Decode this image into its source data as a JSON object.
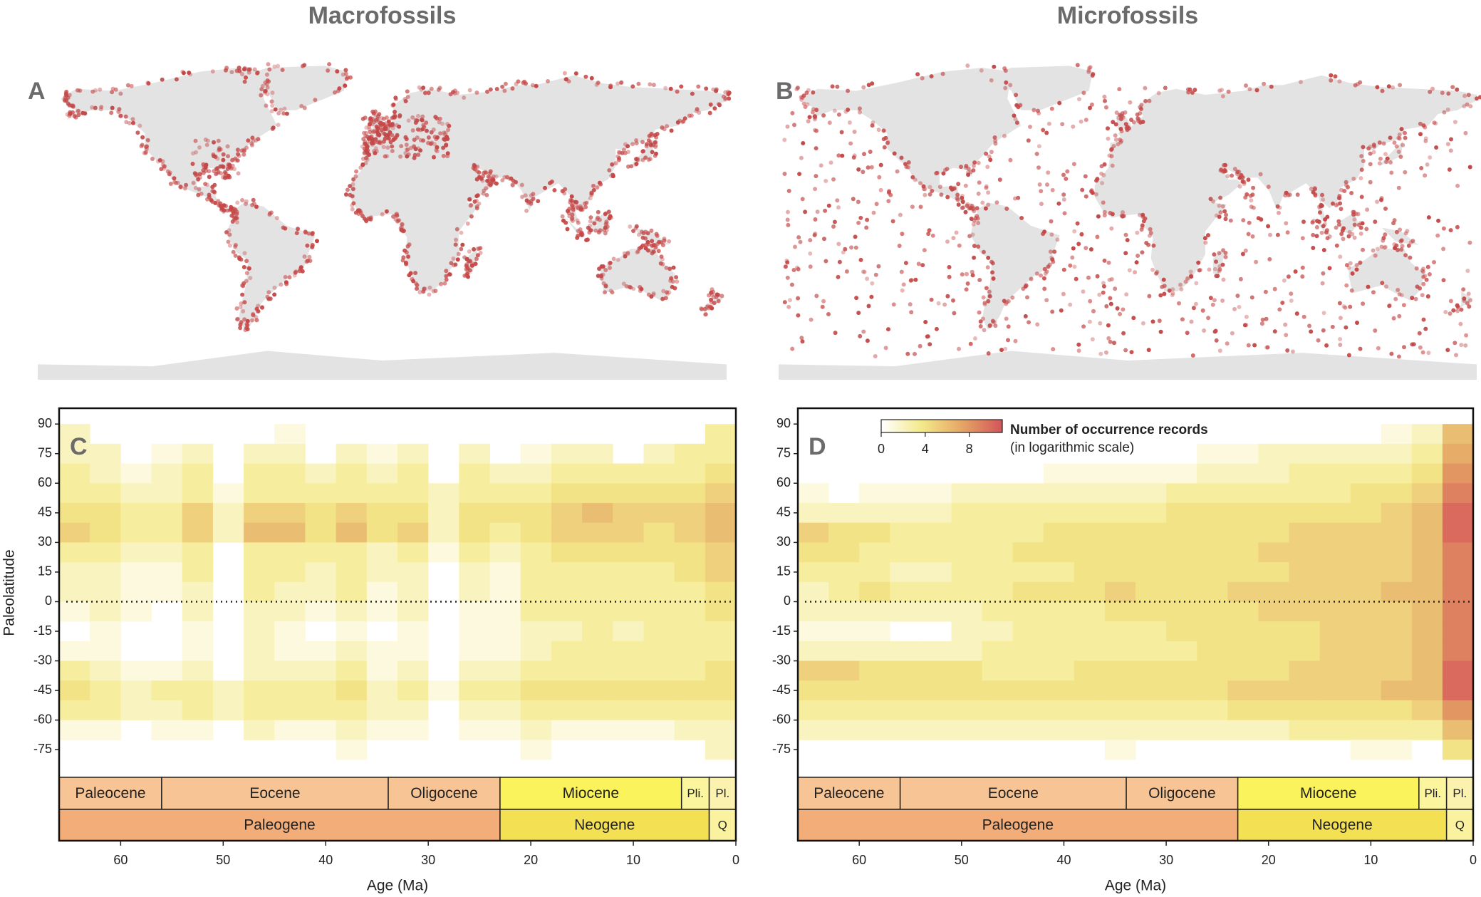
{
  "chart_data": [
    {
      "type": "map",
      "title": "Macrofossils",
      "panel": "A",
      "dot_color": "#c44848",
      "land_color": "#e3e3e3"
    },
    {
      "type": "map",
      "title": "Microfossils",
      "panel": "B",
      "dot_color": "#c44848",
      "land_color": "#e3e3e3"
    },
    {
      "type": "heatmap",
      "panel": "C",
      "xlabel": "Age (Ma)",
      "ylabel": "Paleolatitude",
      "xlim": [
        66,
        0
      ],
      "ylim": [
        -89,
        98
      ],
      "xticks": [
        60,
        50,
        40,
        30,
        20,
        10,
        0
      ],
      "yticks": [
        90,
        75,
        60,
        45,
        30,
        15,
        0,
        -15,
        -30,
        -45,
        -60,
        -75
      ],
      "zero_line": true,
      "zlim": [
        0,
        11
      ],
      "colors": [
        "#ffffff",
        "#f4e98a",
        "#e5a665",
        "#d4545a"
      ],
      "xbins": [
        66,
        63,
        60,
        57,
        54,
        51,
        48,
        45,
        42,
        39,
        36,
        33,
        30,
        27,
        24,
        21,
        18,
        15,
        12,
        9,
        6,
        3,
        0
      ],
      "ybins": [
        90,
        80,
        70,
        60,
        50,
        40,
        30,
        20,
        10,
        0,
        -10,
        -20,
        -30,
        -40,
        -50,
        -60,
        -70,
        -80
      ],
      "z": [
        [
          2,
          null,
          null,
          null,
          null,
          null,
          null,
          1,
          null,
          null,
          null,
          null,
          null,
          null,
          null,
          null,
          null,
          null,
          null,
          null,
          null,
          3
        ],
        [
          2,
          2,
          null,
          1,
          2,
          null,
          2,
          2,
          null,
          2,
          1,
          2,
          null,
          2,
          null,
          1,
          2,
          2,
          null,
          2,
          3,
          3
        ],
        [
          3,
          2,
          1,
          2,
          3,
          null,
          3,
          3,
          2,
          3,
          2,
          3,
          null,
          3,
          2,
          2,
          3,
          3,
          3,
          3,
          3,
          4
        ],
        [
          3,
          3,
          2,
          2,
          3,
          1,
          3,
          3,
          3,
          3,
          3,
          3,
          2,
          3,
          3,
          3,
          4,
          4,
          4,
          4,
          4,
          5
        ],
        [
          4,
          4,
          3,
          3,
          5,
          2,
          5,
          5,
          4,
          5,
          4,
          4,
          2,
          4,
          4,
          4,
          5,
          6,
          5,
          5,
          5,
          6
        ],
        [
          5,
          4,
          3,
          3,
          5,
          2,
          6,
          6,
          4,
          6,
          4,
          5,
          2,
          4,
          3,
          4,
          5,
          5,
          5,
          4,
          5,
          6
        ],
        [
          3,
          3,
          2,
          2,
          3,
          null,
          3,
          3,
          3,
          3,
          2,
          3,
          1,
          3,
          2,
          3,
          4,
          4,
          4,
          4,
          4,
          5
        ],
        [
          2,
          2,
          1,
          1,
          3,
          null,
          3,
          3,
          2,
          3,
          2,
          2,
          null,
          2,
          1,
          3,
          3,
          3,
          3,
          3,
          4,
          5
        ],
        [
          2,
          2,
          1,
          1,
          2,
          null,
          3,
          2,
          2,
          3,
          1,
          2,
          null,
          2,
          1,
          3,
          3,
          3,
          3,
          3,
          3,
          4
        ],
        [
          1,
          2,
          1,
          null,
          2,
          null,
          2,
          2,
          1,
          2,
          1,
          2,
          null,
          1,
          1,
          3,
          3,
          3,
          3,
          3,
          3,
          4
        ],
        [
          null,
          1,
          null,
          null,
          1,
          null,
          2,
          1,
          null,
          1,
          null,
          1,
          null,
          1,
          1,
          2,
          2,
          3,
          2,
          3,
          3,
          3
        ],
        [
          1,
          1,
          null,
          null,
          1,
          null,
          2,
          1,
          1,
          2,
          1,
          1,
          null,
          1,
          1,
          2,
          3,
          3,
          3,
          3,
          3,
          3
        ],
        [
          3,
          2,
          1,
          1,
          2,
          null,
          2,
          2,
          2,
          3,
          1,
          2,
          null,
          2,
          2,
          3,
          3,
          3,
          3,
          3,
          3,
          4
        ],
        [
          4,
          3,
          2,
          3,
          3,
          2,
          3,
          3,
          3,
          4,
          2,
          3,
          1,
          3,
          3,
          4,
          4,
          4,
          4,
          4,
          4,
          4
        ],
        [
          3,
          3,
          2,
          2,
          3,
          2,
          3,
          3,
          3,
          3,
          2,
          2,
          null,
          2,
          2,
          3,
          3,
          3,
          3,
          3,
          3,
          3
        ],
        [
          1,
          1,
          null,
          1,
          1,
          null,
          2,
          1,
          1,
          2,
          1,
          1,
          null,
          1,
          1,
          2,
          1,
          1,
          1,
          1,
          2,
          2
        ],
        [
          null,
          null,
          null,
          null,
          null,
          null,
          null,
          null,
          null,
          1,
          null,
          null,
          null,
          null,
          null,
          1,
          null,
          null,
          null,
          null,
          null,
          2
        ]
      ],
      "timescale": {
        "epochs": [
          {
            "name": "Paleocene",
            "start": 66,
            "end": 56,
            "color": "#f7c496"
          },
          {
            "name": "Eocene",
            "start": 56,
            "end": 33.9,
            "color": "#f7c496"
          },
          {
            "name": "Oligocene",
            "start": 33.9,
            "end": 23,
            "color": "#f7c496"
          },
          {
            "name": "Miocene",
            "start": 23,
            "end": 5.3,
            "color": "#faf35c"
          },
          {
            "name": "Pli.",
            "start": 5.3,
            "end": 2.6,
            "color": "#fbf59e"
          },
          {
            "name": "Pl.",
            "start": 2.6,
            "end": 0,
            "color": "#fbf2b0"
          }
        ],
        "periods": [
          {
            "name": "Paleogene",
            "start": 66,
            "end": 23,
            "color": "#f2ad79"
          },
          {
            "name": "Neogene",
            "start": 23,
            "end": 2.6,
            "color": "#f4e153"
          },
          {
            "name": "Q",
            "start": 2.6,
            "end": 0,
            "color": "#fbf2a0"
          }
        ]
      }
    },
    {
      "type": "heatmap",
      "panel": "D",
      "xlabel": "Age (Ma)",
      "xlim": [
        66,
        0
      ],
      "ylim": [
        -89,
        98
      ],
      "xticks": [
        60,
        50,
        40,
        30,
        20,
        10,
        0
      ],
      "yticks": [
        90,
        75,
        60,
        45,
        30,
        15,
        0,
        -15,
        -30,
        -45,
        -60,
        -75
      ],
      "zero_line": true,
      "zlim": [
        0,
        11
      ],
      "colors": [
        "#ffffff",
        "#f4e98a",
        "#e5a665",
        "#d4545a"
      ],
      "colorbar": {
        "title": "Number of occurrence records",
        "subtitle": "(in logarithmic scale)",
        "ticks": [
          0,
          4,
          8
        ]
      },
      "xbins": [
        66,
        63,
        60,
        57,
        54,
        51,
        48,
        45,
        42,
        39,
        36,
        33,
        30,
        27,
        24,
        21,
        18,
        15,
        12,
        9,
        6,
        3,
        0
      ],
      "ybins": [
        90,
        80,
        70,
        60,
        50,
        40,
        30,
        20,
        10,
        0,
        -10,
        -20,
        -30,
        -40,
        -50,
        -60,
        -70,
        -80
      ],
      "z": [
        [
          null,
          null,
          null,
          null,
          null,
          null,
          null,
          null,
          null,
          null,
          null,
          null,
          null,
          null,
          null,
          null,
          null,
          null,
          null,
          1,
          2,
          6
        ],
        [
          null,
          null,
          null,
          null,
          null,
          null,
          null,
          null,
          null,
          null,
          null,
          null,
          null,
          1,
          1,
          2,
          2,
          2,
          2,
          2,
          3,
          7
        ],
        [
          null,
          null,
          null,
          null,
          null,
          null,
          null,
          null,
          1,
          1,
          1,
          1,
          1,
          2,
          2,
          2,
          3,
          3,
          3,
          3,
          4,
          8
        ],
        [
          1,
          null,
          1,
          1,
          1,
          2,
          2,
          2,
          2,
          2,
          2,
          2,
          3,
          3,
          3,
          3,
          3,
          3,
          4,
          4,
          5,
          9
        ],
        [
          2,
          2,
          2,
          2,
          2,
          3,
          3,
          3,
          3,
          3,
          3,
          3,
          4,
          4,
          4,
          4,
          4,
          4,
          4,
          5,
          6,
          10
        ],
        [
          5,
          4,
          4,
          3,
          3,
          3,
          3,
          3,
          4,
          4,
          4,
          4,
          4,
          4,
          4,
          4,
          5,
          5,
          5,
          5,
          6,
          10
        ],
        [
          4,
          4,
          3,
          3,
          3,
          3,
          3,
          4,
          4,
          4,
          4,
          4,
          4,
          4,
          4,
          5,
          5,
          5,
          5,
          5,
          6,
          9
        ],
        [
          3,
          3,
          3,
          2,
          2,
          3,
          3,
          3,
          3,
          4,
          4,
          4,
          4,
          4,
          4,
          4,
          5,
          5,
          5,
          5,
          6,
          9
        ],
        [
          2,
          3,
          4,
          3,
          3,
          3,
          3,
          4,
          4,
          4,
          5,
          4,
          4,
          4,
          5,
          5,
          5,
          5,
          5,
          6,
          6,
          9
        ],
        [
          2,
          2,
          2,
          2,
          2,
          2,
          3,
          3,
          3,
          3,
          4,
          4,
          4,
          4,
          4,
          5,
          5,
          5,
          5,
          5,
          6,
          9
        ],
        [
          1,
          1,
          1,
          null,
          null,
          2,
          2,
          3,
          3,
          3,
          3,
          3,
          4,
          4,
          4,
          4,
          4,
          5,
          5,
          5,
          6,
          9
        ],
        [
          2,
          2,
          2,
          2,
          2,
          2,
          3,
          3,
          3,
          3,
          3,
          3,
          3,
          4,
          4,
          4,
          4,
          5,
          5,
          5,
          6,
          9
        ],
        [
          5,
          5,
          4,
          4,
          4,
          4,
          3,
          3,
          3,
          4,
          4,
          4,
          4,
          4,
          4,
          4,
          5,
          5,
          5,
          5,
          6,
          10
        ],
        [
          4,
          4,
          4,
          4,
          4,
          4,
          4,
          4,
          4,
          4,
          4,
          4,
          4,
          4,
          5,
          5,
          5,
          5,
          5,
          6,
          6,
          10
        ],
        [
          3,
          3,
          3,
          3,
          3,
          3,
          3,
          3,
          3,
          3,
          3,
          3,
          3,
          3,
          4,
          4,
          4,
          4,
          4,
          4,
          5,
          8
        ],
        [
          2,
          2,
          2,
          2,
          2,
          2,
          2,
          2,
          2,
          2,
          2,
          2,
          2,
          2,
          2,
          2,
          3,
          3,
          3,
          3,
          3,
          6
        ],
        [
          null,
          null,
          null,
          null,
          null,
          null,
          null,
          null,
          null,
          null,
          1,
          null,
          null,
          null,
          null,
          null,
          null,
          null,
          1,
          1,
          null,
          4
        ]
      ],
      "timescale": {
        "epochs": [
          {
            "name": "Paleocene",
            "start": 66,
            "end": 56,
            "color": "#f7c496"
          },
          {
            "name": "Eocene",
            "start": 56,
            "end": 33.9,
            "color": "#f7c496"
          },
          {
            "name": "Oligocene",
            "start": 33.9,
            "end": 23,
            "color": "#f7c496"
          },
          {
            "name": "Miocene",
            "start": 23,
            "end": 5.3,
            "color": "#faf35c"
          },
          {
            "name": "Pli.",
            "start": 5.3,
            "end": 2.6,
            "color": "#fbf59e"
          },
          {
            "name": "Pl.",
            "start": 2.6,
            "end": 0,
            "color": "#fbf2b0"
          }
        ],
        "periods": [
          {
            "name": "Paleogene",
            "start": 66,
            "end": 23,
            "color": "#f2ad79"
          },
          {
            "name": "Neogene",
            "start": 23,
            "end": 2.6,
            "color": "#f4e153"
          },
          {
            "name": "Q",
            "start": 2.6,
            "end": 0,
            "color": "#fbf2a0"
          }
        ]
      }
    }
  ]
}
